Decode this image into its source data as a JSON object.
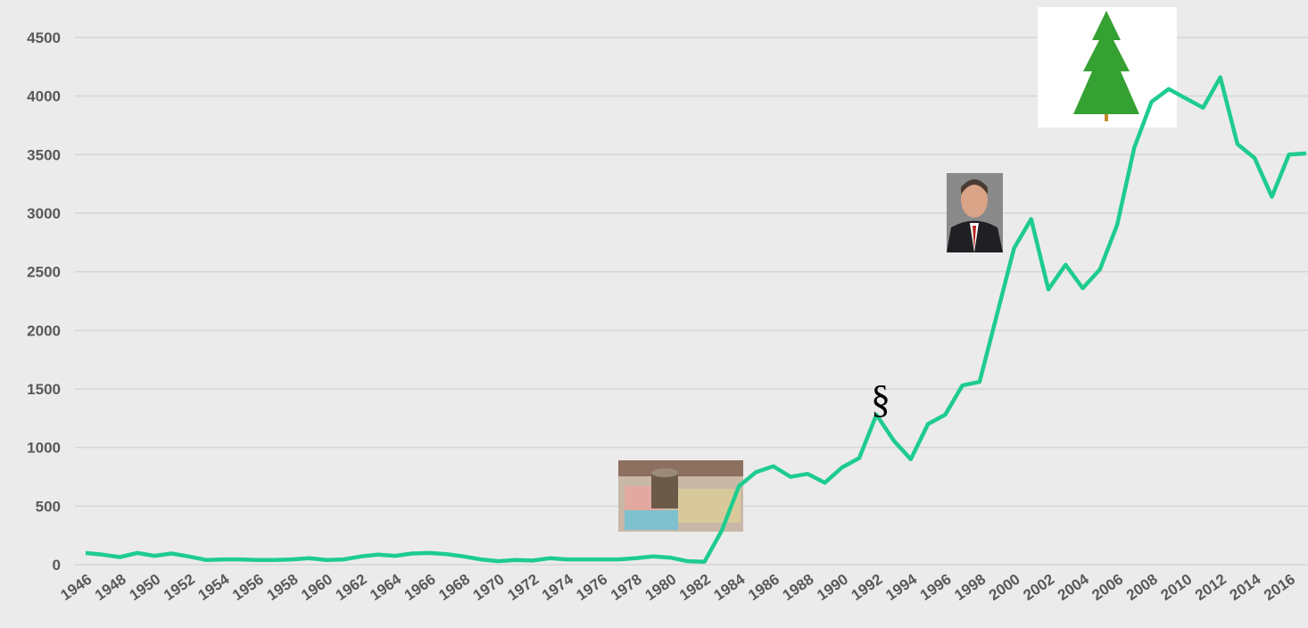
{
  "chart_data": {
    "type": "line",
    "x": [
      1946,
      1947,
      1948,
      1949,
      1950,
      1951,
      1952,
      1953,
      1954,
      1955,
      1956,
      1957,
      1958,
      1959,
      1960,
      1961,
      1962,
      1963,
      1964,
      1965,
      1966,
      1967,
      1968,
      1969,
      1970,
      1971,
      1972,
      1973,
      1974,
      1975,
      1976,
      1977,
      1978,
      1979,
      1980,
      1981,
      1982,
      1983,
      1984,
      1985,
      1986,
      1987,
      1988,
      1989,
      1990,
      1991,
      1992,
      1993,
      1994,
      1995,
      1996,
      1997,
      1998,
      1999,
      2000,
      2001,
      2002,
      2003,
      2004,
      2005,
      2006,
      2007,
      2008,
      2009,
      2010,
      2011,
      2012,
      2013,
      2014,
      2015,
      2016,
      2017
    ],
    "series": [
      {
        "color": "#1ecc8e",
        "values": [
          100,
          85,
          65,
          100,
          75,
          95,
          70,
          40,
          45,
          45,
          40,
          40,
          45,
          55,
          40,
          45,
          70,
          85,
          75,
          95,
          100,
          90,
          70,
          45,
          30,
          40,
          35,
          55,
          45,
          45,
          45,
          45,
          55,
          70,
          60,
          30,
          25,
          290,
          670,
          790,
          840,
          750,
          775,
          700,
          830,
          910,
          1280,
          1060,
          900,
          1200,
          1280,
          1530,
          1560,
          2130,
          2700,
          2950,
          2350,
          2560,
          2360,
          2520,
          2900,
          3560,
          3950,
          4060,
          3980,
          3900,
          4160,
          3590,
          3470,
          3140,
          3500,
          3510
        ]
      }
    ],
    "xlim": [
      1946,
      2017
    ],
    "xticks": [
      1946,
      1948,
      1950,
      1952,
      1954,
      1956,
      1958,
      1960,
      1962,
      1964,
      1966,
      1968,
      1970,
      1972,
      1974,
      1976,
      1978,
      1980,
      1982,
      1984,
      1986,
      1988,
      1990,
      1992,
      1994,
      1996,
      1998,
      2000,
      2002,
      2004,
      2006,
      2008,
      2010,
      2012,
      2014,
      2016
    ],
    "ylim": [
      0,
      4500
    ],
    "yticks": [
      0,
      500,
      1000,
      1500,
      2000,
      2500,
      3000,
      3500,
      4000,
      4500
    ],
    "grid": true,
    "annotation": "§"
  }
}
